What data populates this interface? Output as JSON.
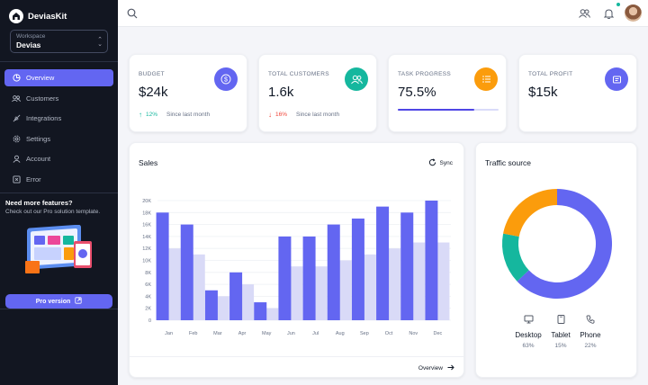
{
  "brand": {
    "name": "DeviasKit"
  },
  "workspace": {
    "label": "Workspace",
    "value": "Devias"
  },
  "nav": [
    {
      "label": "Overview",
      "icon": "chart-pie-icon",
      "active": true
    },
    {
      "label": "Customers",
      "icon": "users-icon",
      "active": false
    },
    {
      "label": "Integrations",
      "icon": "plugs-icon",
      "active": false
    },
    {
      "label": "Settings",
      "icon": "gear-icon",
      "active": false
    },
    {
      "label": "Account",
      "icon": "user-icon",
      "active": false
    },
    {
      "label": "Error",
      "icon": "x-square-icon",
      "active": false
    }
  ],
  "promo": {
    "title": "Need more features?",
    "subtitle": "Check out our Pro solution template.",
    "button": "Pro version"
  },
  "kpis": {
    "budget": {
      "label": "BUDGET",
      "value": "$24k",
      "trend": "12%",
      "trend_dir": "up",
      "since": "Since last month",
      "color": "#6366f1"
    },
    "customers": {
      "label": "TOTAL CUSTOMERS",
      "value": "1.6k",
      "trend": "16%",
      "trend_dir": "down",
      "since": "Since last month",
      "color": "#15b79e"
    },
    "task": {
      "label": "TASK PROGRESS",
      "value": "75.5%",
      "progress": 75.5,
      "color": "#fb9c0c"
    },
    "profit": {
      "label": "TOTAL PROFIT",
      "value": "$15k",
      "color": "#6366f1"
    }
  },
  "sales": {
    "title": "Sales",
    "sync_label": "Sync",
    "overview_label": "Overview"
  },
  "traffic": {
    "title": "Traffic source",
    "items": [
      {
        "label": "Desktop",
        "pct": "63%",
        "icon": "desktop-icon"
      },
      {
        "label": "Tablet",
        "pct": "15%",
        "icon": "tablet-icon"
      },
      {
        "label": "Phone",
        "pct": "22%",
        "icon": "phone-icon"
      }
    ]
  },
  "chart_data": [
    {
      "type": "bar",
      "title": "Sales",
      "categories": [
        "Jan",
        "Feb",
        "Mar",
        "Apr",
        "May",
        "Jun",
        "Jul",
        "Aug",
        "Sep",
        "Oct",
        "Nov",
        "Dec"
      ],
      "series": [
        {
          "values": [
            18,
            16,
            5,
            8,
            3,
            14,
            14,
            16,
            17,
            19,
            18,
            20
          ],
          "color": "#6366f1"
        },
        {
          "values": [
            12,
            11,
            4,
            6,
            2,
            9,
            9,
            10,
            11,
            12,
            13,
            13
          ],
          "color": "#d9daf7"
        }
      ],
      "ylim": [
        0,
        20000
      ],
      "yticks": [
        "0",
        "2K",
        "4K",
        "6K",
        "8K",
        "10K",
        "12K",
        "14K",
        "16K",
        "18K",
        "20K"
      ],
      "grid": true
    },
    {
      "type": "pie",
      "title": "Traffic source",
      "labels": [
        "Desktop",
        "Tablet",
        "Phone"
      ],
      "values": [
        63,
        15,
        22
      ],
      "colors": [
        "#6366f1",
        "#15b79e",
        "#fb9c0c"
      ]
    }
  ]
}
